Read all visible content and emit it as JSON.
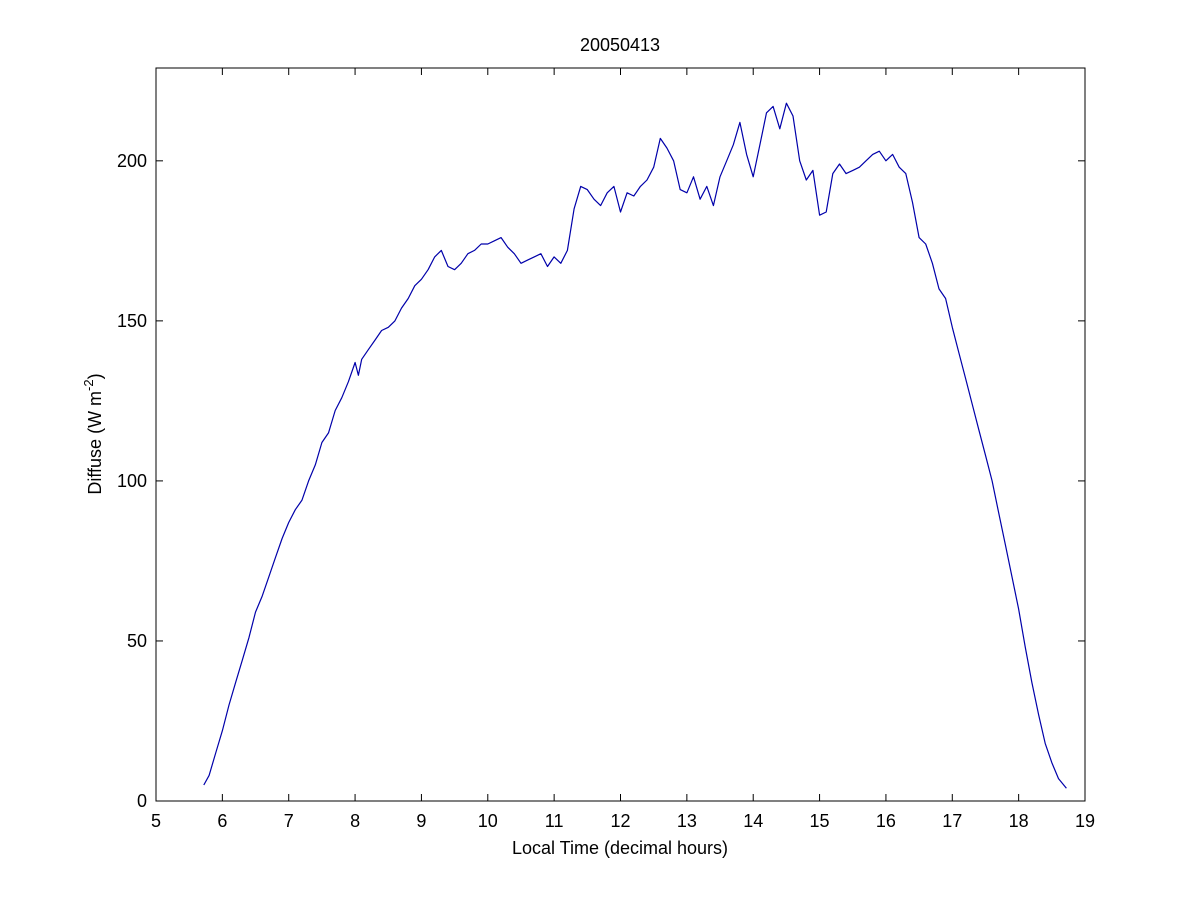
{
  "chart_data": {
    "type": "line",
    "title": "20050413",
    "xlabel": "Local Time (decimal hours)",
    "ylabel": {
      "prefix": "Diffuse (W m",
      "superscript": "-2",
      "suffix": ")"
    },
    "xlim": [
      5,
      19
    ],
    "ylim": [
      0,
      229
    ],
    "xticks": [
      5,
      6,
      7,
      8,
      9,
      10,
      11,
      12,
      13,
      14,
      15,
      16,
      17,
      18,
      19
    ],
    "yticks": [
      0,
      50,
      100,
      150,
      200
    ],
    "grid": false,
    "legend": "none",
    "line_color": "#0000aa",
    "series": [
      {
        "x": [
          5.72,
          5.8,
          5.9,
          6.0,
          6.1,
          6.2,
          6.3,
          6.4,
          6.5,
          6.6,
          6.7,
          6.8,
          6.9,
          7.0,
          7.1,
          7.2,
          7.3,
          7.4,
          7.5,
          7.6,
          7.7,
          7.8,
          7.9,
          8.0,
          8.05,
          8.1,
          8.2,
          8.3,
          8.4,
          8.5,
          8.6,
          8.7,
          8.8,
          8.9,
          9.0,
          9.1,
          9.2,
          9.3,
          9.4,
          9.5,
          9.6,
          9.7,
          9.8,
          9.9,
          10.0,
          10.1,
          10.2,
          10.3,
          10.4,
          10.5,
          10.6,
          10.7,
          10.8,
          10.9,
          11.0,
          11.1,
          11.2,
          11.3,
          11.4,
          11.5,
          11.6,
          11.7,
          11.8,
          11.9,
          12.0,
          12.1,
          12.2,
          12.3,
          12.4,
          12.5,
          12.6,
          12.7,
          12.8,
          12.9,
          13.0,
          13.1,
          13.2,
          13.3,
          13.4,
          13.5,
          13.6,
          13.7,
          13.8,
          13.9,
          14.0,
          14.1,
          14.2,
          14.3,
          14.4,
          14.5,
          14.6,
          14.7,
          14.8,
          14.9,
          15.0,
          15.1,
          15.2,
          15.3,
          15.4,
          15.5,
          15.6,
          15.7,
          15.8,
          15.9,
          16.0,
          16.1,
          16.2,
          16.3,
          16.4,
          16.5,
          16.6,
          16.7,
          16.8,
          16.9,
          17.0,
          17.1,
          17.2,
          17.3,
          17.4,
          17.5,
          17.6,
          17.7,
          17.8,
          17.9,
          18.0,
          18.1,
          18.2,
          18.3,
          18.4,
          18.5,
          18.6,
          18.72
        ],
        "y": [
          5,
          8,
          15,
          22,
          30,
          37,
          44,
          51,
          59,
          64,
          70,
          76,
          82,
          87,
          91,
          94,
          100,
          105,
          112,
          115,
          122,
          126,
          131,
          137,
          133,
          138,
          141,
          144,
          147,
          148,
          150,
          154,
          157,
          161,
          163,
          166,
          170,
          172,
          167,
          166,
          168,
          171,
          172,
          174,
          174,
          175,
          176,
          173,
          171,
          168,
          169,
          170,
          171,
          167,
          170,
          168,
          172,
          185,
          192,
          191,
          188,
          186,
          190,
          192,
          184,
          190,
          189,
          192,
          194,
          198,
          207,
          204,
          200,
          191,
          190,
          195,
          188,
          192,
          186,
          195,
          200,
          205,
          212,
          202,
          195,
          205,
          215,
          217,
          210,
          218,
          214,
          200,
          194,
          197,
          183,
          184,
          196,
          199,
          196,
          197,
          198,
          200,
          202,
          203,
          200,
          202,
          198,
          196,
          187,
          176,
          174,
          168,
          160,
          157,
          148,
          140,
          132,
          124,
          116,
          108,
          100,
          90,
          80,
          70,
          60,
          48,
          37,
          27,
          18,
          12,
          7,
          4
        ]
      }
    ]
  }
}
